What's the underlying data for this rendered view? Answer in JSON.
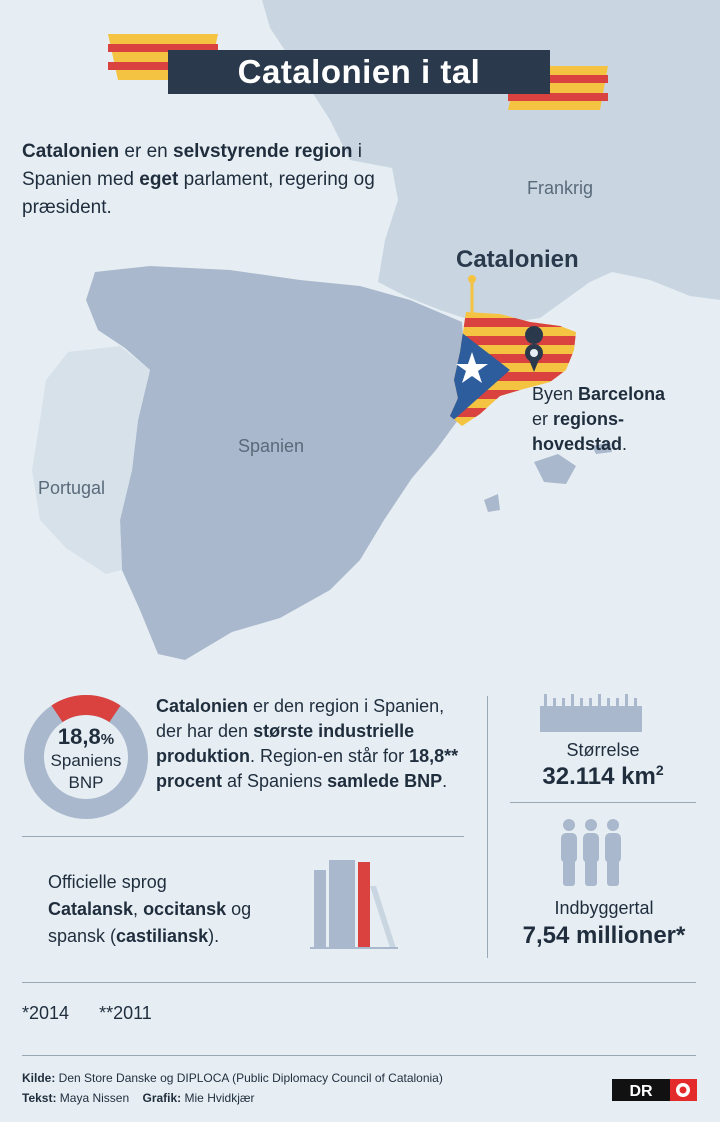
{
  "header": {
    "title": "Catalonien i tal"
  },
  "intro": {
    "p1": "Catalonien",
    "p2": " er en ",
    "p3": "selvstyrende region",
    "p4": " i Spanien med ",
    "p5": "eget",
    "p6": " parlament, regering og præsident."
  },
  "map": {
    "france": "Frankrig",
    "spain": "Spanien",
    "portugal": "Portugal",
    "region": "Catalonien",
    "capital_1": "Byen ",
    "capital_2": "Barcelona",
    "capital_3": "er ",
    "capital_4": "regions-",
    "capital_5": "hovedstad",
    "capital_6": "."
  },
  "gdp": {
    "percent": "18,8",
    "percent_sign": "%",
    "label_1": "Spaniens",
    "label_2": "BNP",
    "share": 0.188,
    "t1": "Catalonien",
    "t2": " er den region i Spanien, der har den ",
    "t3": "største industrielle produktion",
    "t4": ". Region-en står for ",
    "t5": "18,8** procent",
    "t6": " af Spaniens ",
    "t7": "samlede BNP",
    "t8": "."
  },
  "languages": {
    "label": "Officielle sprog",
    "l1": "Catalansk",
    "l2": ", ",
    "l3": "occitansk",
    "l4": " og spansk (",
    "l5": "castiliansk",
    "l6": ")."
  },
  "size": {
    "label": "Størrelse",
    "value": "32.114 km",
    "unit_sup": "2"
  },
  "population": {
    "label": "Indbyggertal",
    "value": "7,54 millioner*"
  },
  "footnotes": {
    "f1": "*2014",
    "f2": "**2011"
  },
  "credits": {
    "source_label": "Kilde:",
    "source": " Den Store Danske og DIPLOCA (Public Diplomacy Council of Catalonia)",
    "text_label": "Tekst:",
    "text": " Maya Nissen",
    "graphic_label": "Grafik:",
    "graphic": " Mie Hvidkjær"
  },
  "logo": {
    "text": "DR"
  },
  "colors": {
    "background": "#e6eef3",
    "spain": "#a9b8cc",
    "france": "#c9d6e2",
    "portugal": "#d7e1ea",
    "title_bar": "#2a3a4c",
    "flag_red": "#d9423f",
    "flag_yellow": "#f5c342",
    "estelada_blue": "#2d5d9c",
    "ring_grey": "#a9b8cc"
  }
}
